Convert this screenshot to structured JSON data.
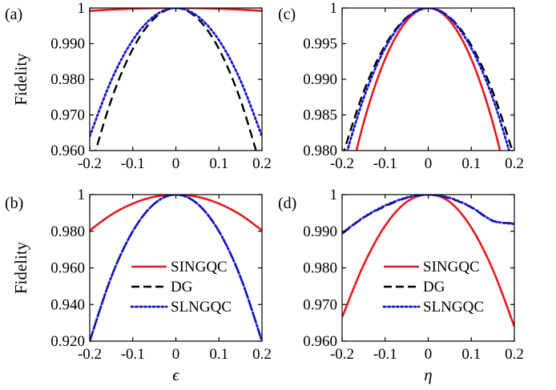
{
  "colors": {
    "SINGQC": "#e8191c",
    "DG": "#000000",
    "SLNGQC": "#1515d6",
    "axis": "#000000"
  },
  "chart_data": [
    {
      "id": "a",
      "panel_label": "(a)",
      "type": "line",
      "xlabel": "",
      "ylabel": "Fidelity",
      "xlim": [
        -0.2,
        0.2
      ],
      "ylim": [
        0.96,
        1
      ],
      "xticks": [
        -0.2,
        -0.1,
        0,
        0.1,
        0.2
      ],
      "xtick_labels": [
        "-0.2",
        "-0.1",
        "0",
        "0.1",
        "0.2"
      ],
      "yticks": [
        0.96,
        0.97,
        0.98,
        0.99,
        1
      ],
      "ytick_labels": [
        "0.960",
        "0.970",
        "0.980",
        "0.990",
        "1"
      ],
      "legend": null,
      "series": [
        {
          "name": "SINGQC",
          "style": "solid",
          "x": [
            -0.2,
            -0.15,
            -0.1,
            -0.05,
            0,
            0.05,
            0.1,
            0.15,
            0.2
          ],
          "y": [
            0.9992,
            0.99955,
            0.9998,
            0.99995,
            1,
            0.99995,
            0.9998,
            0.99955,
            0.9992
          ]
        },
        {
          "name": "DG",
          "style": "dashed",
          "x": [
            -0.2,
            -0.15,
            -0.1,
            -0.05,
            0,
            0.05,
            0.1,
            0.15,
            0.2
          ],
          "y": [
            0.9542,
            0.9742,
            0.9885,
            0.9971,
            1,
            0.9971,
            0.9885,
            0.9742,
            0.9542
          ]
        },
        {
          "name": "SLNGQC",
          "style": "dotted",
          "x": [
            -0.2,
            -0.15,
            -0.1,
            -0.05,
            0,
            0.05,
            0.1,
            0.15,
            0.2
          ],
          "y": [
            0.964,
            0.9797,
            0.991,
            0.99775,
            1,
            0.99775,
            0.991,
            0.9797,
            0.964
          ]
        }
      ]
    },
    {
      "id": "b",
      "panel_label": "(b)",
      "type": "line",
      "xlabel": "ϵ",
      "ylabel": "Fidelity",
      "xlim": [
        -0.2,
        0.2
      ],
      "ylim": [
        0.92,
        1
      ],
      "xticks": [
        -0.2,
        -0.1,
        0,
        0.1,
        0.2
      ],
      "xtick_labels": [
        "-0.2",
        "-0.1",
        "0",
        "0.1",
        "0.2"
      ],
      "yticks": [
        0.92,
        0.94,
        0.96,
        0.98,
        1
      ],
      "ytick_labels": [
        "0.920",
        "0.940",
        "0.960",
        "0.980",
        "1"
      ],
      "legend": "lower-center",
      "series": [
        {
          "name": "SINGQC",
          "style": "solid",
          "x": [
            -0.2,
            -0.15,
            -0.1,
            -0.05,
            0,
            0.05,
            0.1,
            0.15,
            0.2
          ],
          "y": [
            0.9805,
            0.989,
            0.9951,
            0.9988,
            1,
            0.9988,
            0.9951,
            0.989,
            0.9805
          ]
        },
        {
          "name": "DG",
          "style": "dashed",
          "x": [
            -0.2,
            -0.15,
            -0.1,
            -0.05,
            0,
            0.05,
            0.1,
            0.15,
            0.2
          ],
          "y": [
            0.92,
            0.955,
            0.98,
            0.995,
            1,
            0.995,
            0.98,
            0.955,
            0.92
          ]
        },
        {
          "name": "SLNGQC",
          "style": "dotted",
          "x": [
            -0.2,
            -0.15,
            -0.1,
            -0.05,
            0,
            0.05,
            0.1,
            0.15,
            0.2
          ],
          "y": [
            0.92,
            0.955,
            0.98,
            0.995,
            1,
            0.995,
            0.98,
            0.955,
            0.92
          ]
        }
      ]
    },
    {
      "id": "c",
      "panel_label": "(c)",
      "type": "line",
      "xlabel": "",
      "ylabel": "",
      "xlim": [
        -0.2,
        0.2
      ],
      "ylim": [
        0.98,
        1
      ],
      "xticks": [
        -0.2,
        -0.1,
        0,
        0.1,
        0.2
      ],
      "xtick_labels": [
        "-0.2",
        "-0.1",
        "0",
        "0.1",
        "0.2"
      ],
      "yticks": [
        0.98,
        0.985,
        0.99,
        0.995,
        1
      ],
      "ytick_labels": [
        "0.980",
        "0.985",
        "0.990",
        "0.995",
        "1"
      ],
      "legend": null,
      "series": [
        {
          "name": "SINGQC",
          "style": "solid",
          "x": [
            -0.2,
            -0.15,
            -0.1,
            -0.05,
            0,
            0.05,
            0.1,
            0.15,
            0.2
          ],
          "y": [
            0.9714,
            0.9839,
            0.99285,
            0.99821,
            1,
            0.99821,
            0.99285,
            0.9839,
            0.9714
          ]
        },
        {
          "name": "DG",
          "style": "dashed",
          "x": [
            -0.2,
            -0.15,
            -0.1,
            -0.05,
            0,
            0.05,
            0.1,
            0.15,
            0.2
          ],
          "y": [
            0.9791,
            0.98824,
            0.99477,
            0.99869,
            1,
            0.99869,
            0.99477,
            0.98824,
            0.9791
          ]
        },
        {
          "name": "SLNGQC",
          "style": "dotted",
          "x": [
            -0.2,
            -0.15,
            -0.1,
            -0.05,
            0,
            0.05,
            0.1,
            0.15,
            0.2
          ],
          "y": [
            0.9775,
            0.98734,
            0.99438,
            0.99859,
            1,
            0.99859,
            0.99438,
            0.98734,
            0.9775
          ]
        }
      ]
    },
    {
      "id": "d",
      "panel_label": "(d)",
      "type": "line",
      "xlabel": "η",
      "ylabel": "",
      "xlim": [
        -0.2,
        0.2
      ],
      "ylim": [
        0.96,
        1
      ],
      "xticks": [
        -0.2,
        -0.1,
        0,
        0.1,
        0.2
      ],
      "xtick_labels": [
        "-0.2",
        "-0.1",
        "0",
        "0.1",
        "0.2"
      ],
      "yticks": [
        0.96,
        0.97,
        0.98,
        0.99,
        1
      ],
      "ytick_labels": [
        "0.960",
        "0.970",
        "0.980",
        "0.990",
        "1"
      ],
      "legend": "lower-center",
      "series": [
        {
          "name": "SINGQC",
          "style": "solid",
          "x": [
            -0.2,
            -0.15,
            -0.1,
            -0.05,
            0,
            0.05,
            0.1,
            0.15,
            0.2
          ],
          "y": [
            0.9665,
            0.9808,
            0.9915,
            0.998,
            1,
            0.998,
            0.991,
            0.9795,
            0.964
          ]
        },
        {
          "name": "DG",
          "style": "dashed",
          "x": [
            -0.2,
            -0.15,
            -0.1,
            -0.05,
            0,
            0.05,
            0.1,
            0.15,
            0.2
          ],
          "y": [
            0.9893,
            0.9937,
            0.9968,
            0.9991,
            1,
            0.999,
            0.9965,
            0.9928,
            0.9922
          ]
        },
        {
          "name": "SLNGQC",
          "style": "dotted",
          "x": [
            -0.2,
            -0.15,
            -0.1,
            -0.05,
            0,
            0.05,
            0.1,
            0.15,
            0.2
          ],
          "y": [
            0.9895,
            0.9938,
            0.997,
            0.9992,
            1,
            0.9991,
            0.9966,
            0.9929,
            0.992
          ]
        }
      ]
    }
  ]
}
